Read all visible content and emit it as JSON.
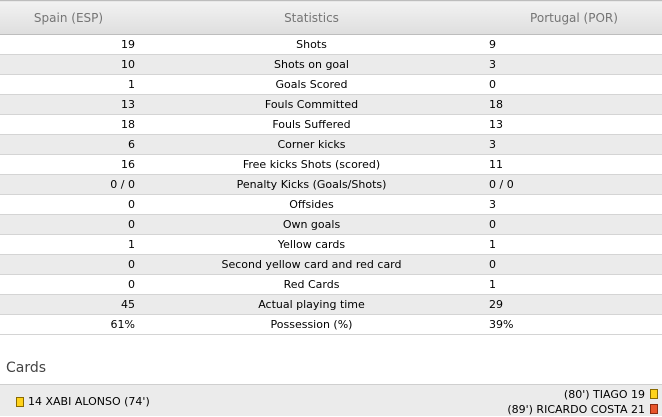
{
  "header": {
    "home_team": "Spain (ESP)",
    "stat_label": "Statistics",
    "away_team": "Portugal (POR)"
  },
  "stats": [
    {
      "home": "19",
      "label": "Shots",
      "away": "9"
    },
    {
      "home": "10",
      "label": "Shots on goal",
      "away": "3"
    },
    {
      "home": "1",
      "label": "Goals Scored",
      "away": "0"
    },
    {
      "home": "13",
      "label": "Fouls Committed",
      "away": "18"
    },
    {
      "home": "18",
      "label": "Fouls Suffered",
      "away": "13"
    },
    {
      "home": "6",
      "label": "Corner kicks",
      "away": "3"
    },
    {
      "home": "16",
      "label": "Free kicks Shots (scored)",
      "away": "11"
    },
    {
      "home": "0 / 0",
      "label": "Penalty Kicks (Goals/Shots)",
      "away": "0 / 0"
    },
    {
      "home": "0",
      "label": "Offsides",
      "away": "3"
    },
    {
      "home": "0",
      "label": "Own goals",
      "away": "0"
    },
    {
      "home": "1",
      "label": "Yellow cards",
      "away": "1"
    },
    {
      "home": "0",
      "label": "Second yellow card and red card",
      "away": "0"
    },
    {
      "home": "0",
      "label": "Red Cards",
      "away": "1"
    },
    {
      "home": "45",
      "label": "Actual playing time",
      "away": "29"
    },
    {
      "home": "61%",
      "label": "Possession (%)",
      "away": "39%"
    }
  ],
  "cards": {
    "title": "Cards",
    "home": [
      {
        "text": "14 XABI ALONSO (74')",
        "card": "yellow-card-icon",
        "color": "#ffd21a"
      }
    ],
    "away": [
      {
        "text": "(80') TIAGO 19",
        "card": "yellow-card-icon",
        "color": "#ffd21a"
      },
      {
        "text": "(89') RICARDO COSTA 21",
        "card": "red-card-icon",
        "color": "#e8552b"
      }
    ]
  }
}
